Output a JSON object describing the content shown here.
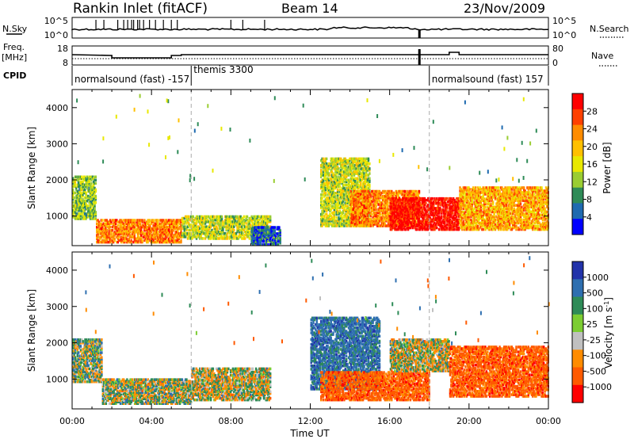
{
  "header": {
    "station": "Rankin Inlet (fitACF)",
    "beam": "Beam 14",
    "date": "23/Nov/2009"
  },
  "summary_panels": {
    "nsky_label": "N.Sky",
    "nsky_ticks": [
      "10^5",
      "10^0"
    ],
    "nsearch_label": "N.Search",
    "nsearch_ticks": [
      "10^5",
      "10^0"
    ],
    "freq_label_1": "Freq.",
    "freq_label_2": "[MHz]",
    "freq_ticks": [
      "18",
      "8"
    ],
    "nave_label": "Nave",
    "nave_ticks": [
      "80",
      "0"
    ],
    "cpid_label": "CPID",
    "cpid_entries": [
      {
        "label": "normalsound (fast) -157",
        "start_hour": 0.0
      },
      {
        "label": "themis 3300",
        "start_hour": 6.0
      },
      {
        "label": "normalsound (fast) 157",
        "start_hour": 18.0
      }
    ]
  },
  "power_colorbar": {
    "label": "Power [dB]",
    "ticks": [
      "28",
      "24",
      "20",
      "16",
      "12",
      "8",
      "4"
    ],
    "colors": [
      "#ff0000",
      "#ff4000",
      "#ff8c00",
      "#ffc000",
      "#e8e800",
      "#9acd32",
      "#2e8b57",
      "#1e6ab0",
      "#0000ff"
    ]
  },
  "velocity_colorbar": {
    "label": "Velocity [m s",
    "label_sup": "-1",
    "label_end": "]",
    "ticks": [
      "1000",
      "500",
      "100",
      "25",
      "-25",
      "-100",
      "-500",
      "-1000"
    ],
    "colors": [
      "#2233aa",
      "#2e6fb0",
      "#2e8b57",
      "#7ccd32",
      "#c0c0c0",
      "#ff8c00",
      "#ff5a00",
      "#ff0000"
    ]
  },
  "chart_data": [
    {
      "type": "heatmap",
      "title": "Power",
      "ylabel": "Slant Range [km]",
      "xlabel": "Time UT",
      "xlim": [
        0,
        24
      ],
      "ylim": [
        180,
        4500
      ],
      "yticks": [
        "1000",
        "2000",
        "3000",
        "4000"
      ],
      "xticks": [
        "00:00",
        "04:00",
        "08:00",
        "12:00",
        "16:00",
        "20:00",
        "00:00"
      ],
      "echo_regions": [
        {
          "t0": 0.0,
          "t1": 1.2,
          "r0": 900,
          "r1": 2100,
          "db": 12
        },
        {
          "t0": 1.2,
          "t1": 5.5,
          "r0": 250,
          "r1": 900,
          "db": 22
        },
        {
          "t0": 5.5,
          "t1": 10.0,
          "r0": 350,
          "r1": 1000,
          "db": 14
        },
        {
          "t0": 9.0,
          "t1": 10.5,
          "r0": 180,
          "r1": 700,
          "db": 6
        },
        {
          "t0": 12.5,
          "t1": 15.0,
          "r0": 700,
          "r1": 2600,
          "db": 14
        },
        {
          "t0": 14.0,
          "t1": 17.5,
          "r0": 700,
          "r1": 1700,
          "db": 22
        },
        {
          "t0": 16.0,
          "t1": 19.5,
          "r0": 600,
          "r1": 1500,
          "db": 28
        },
        {
          "t0": 19.5,
          "t1": 24.0,
          "r0": 600,
          "r1": 1800,
          "db": 20
        }
      ]
    },
    {
      "type": "heatmap",
      "title": "Velocity",
      "ylabel": "Slant Range [km]",
      "xlabel": "Time UT",
      "xlim": [
        0,
        24
      ],
      "ylim": [
        180,
        4500
      ],
      "yticks": [
        "1000",
        "2000",
        "3000",
        "4000"
      ],
      "xticks": [
        "00:00",
        "04:00",
        "08:00",
        "12:00",
        "16:00",
        "20:00",
        "00:00"
      ],
      "echo_regions": [
        {
          "t0": 0.0,
          "t1": 1.5,
          "r0": 900,
          "r1": 2100,
          "v": 100
        },
        {
          "t0": 1.5,
          "t1": 6.0,
          "r0": 300,
          "r1": 1000,
          "v": 25
        },
        {
          "t0": 6.0,
          "t1": 10.0,
          "r0": 400,
          "r1": 1300,
          "v": 0
        },
        {
          "t0": 12.0,
          "t1": 15.5,
          "r0": 700,
          "r1": 2700,
          "v": 500
        },
        {
          "t0": 12.5,
          "t1": 18.0,
          "r0": 400,
          "r1": 1200,
          "v": -500
        },
        {
          "t0": 16.0,
          "t1": 19.0,
          "r0": 1200,
          "r1": 2100,
          "v": 0
        },
        {
          "t0": 19.0,
          "t1": 24.0,
          "r0": 500,
          "r1": 1900,
          "v": -500
        }
      ]
    }
  ]
}
